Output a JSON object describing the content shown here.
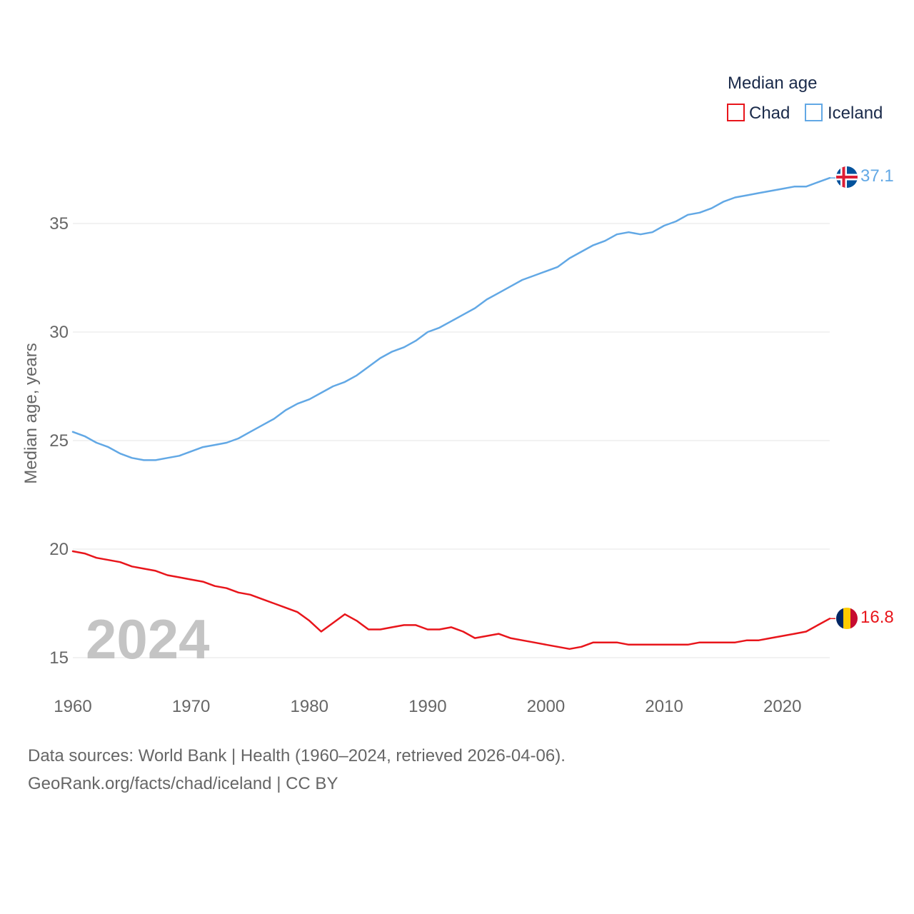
{
  "chart_data": {
    "type": "line",
    "ylabel": "Median age, years",
    "xlabel": "",
    "legend_title": "Median age",
    "legend_position": "top-right",
    "year_watermark": "2024",
    "xlim": [
      1960,
      2024
    ],
    "ylim": [
      14,
      38.5
    ],
    "x_ticks": [
      1960,
      1970,
      1980,
      1990,
      2000,
      2010,
      2020
    ],
    "y_ticks": [
      15,
      20,
      25,
      30,
      35
    ],
    "grid": true,
    "x": [
      1960,
      1961,
      1962,
      1963,
      1964,
      1965,
      1966,
      1967,
      1968,
      1969,
      1970,
      1971,
      1972,
      1973,
      1974,
      1975,
      1976,
      1977,
      1978,
      1979,
      1980,
      1981,
      1982,
      1983,
      1984,
      1985,
      1986,
      1987,
      1988,
      1989,
      1990,
      1991,
      1992,
      1993,
      1994,
      1995,
      1996,
      1997,
      1998,
      1999,
      2000,
      2001,
      2002,
      2003,
      2004,
      2005,
      2006,
      2007,
      2008,
      2009,
      2010,
      2011,
      2012,
      2013,
      2014,
      2015,
      2016,
      2017,
      2018,
      2019,
      2020,
      2021,
      2022,
      2023,
      2024
    ],
    "series": [
      {
        "name": "Chad",
        "color": "#e8151b",
        "end_label": "16.8",
        "values": [
          19.9,
          19.8,
          19.6,
          19.5,
          19.4,
          19.2,
          19.1,
          19.0,
          18.8,
          18.7,
          18.6,
          18.5,
          18.3,
          18.2,
          18.0,
          17.9,
          17.7,
          17.5,
          17.3,
          17.1,
          16.7,
          16.2,
          16.6,
          17.0,
          16.7,
          16.3,
          16.3,
          16.4,
          16.5,
          16.5,
          16.3,
          16.3,
          16.4,
          16.2,
          15.9,
          16.0,
          16.1,
          15.9,
          15.8,
          15.7,
          15.6,
          15.5,
          15.4,
          15.5,
          15.7,
          15.7,
          15.7,
          15.6,
          15.6,
          15.6,
          15.6,
          15.6,
          15.6,
          15.7,
          15.7,
          15.7,
          15.7,
          15.8,
          15.8,
          15.9,
          16.0,
          16.1,
          16.2,
          16.5,
          16.8
        ]
      },
      {
        "name": "Iceland",
        "color": "#62a8e5",
        "end_label": "37.1",
        "values": [
          25.4,
          25.2,
          24.9,
          24.7,
          24.4,
          24.2,
          24.1,
          24.1,
          24.2,
          24.3,
          24.5,
          24.7,
          24.8,
          24.9,
          25.1,
          25.4,
          25.7,
          26.0,
          26.4,
          26.7,
          26.9,
          27.2,
          27.5,
          27.7,
          28.0,
          28.4,
          28.8,
          29.1,
          29.3,
          29.6,
          30.0,
          30.2,
          30.5,
          30.8,
          31.1,
          31.5,
          31.8,
          32.1,
          32.4,
          32.6,
          32.8,
          33.0,
          33.4,
          33.7,
          34.0,
          34.2,
          34.5,
          34.6,
          34.5,
          34.6,
          34.9,
          35.1,
          35.4,
          35.5,
          35.7,
          36.0,
          36.2,
          36.3,
          36.4,
          36.5,
          36.6,
          36.7,
          36.7,
          36.9,
          37.1
        ]
      }
    ]
  },
  "source": {
    "line1": "Data sources: World Bank | Health (1960–2024, retrieved 2026-04-06).",
    "line2": "GeoRank.org/facts/chad/iceland | CC BY"
  }
}
